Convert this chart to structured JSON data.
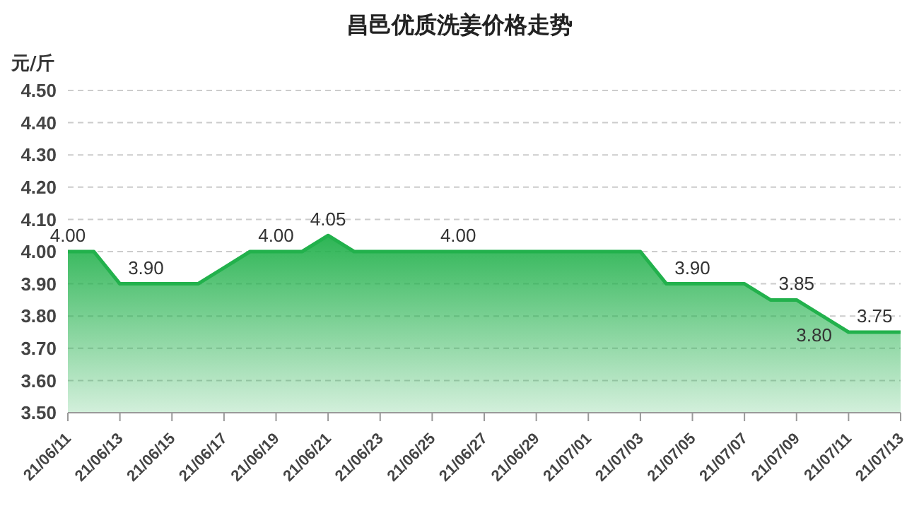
{
  "chart_data": {
    "type": "area",
    "title": "昌邑优质洗姜价格走势",
    "ylabel": "元/斤",
    "categories": [
      "21/06/11",
      null,
      "21/06/13",
      null,
      "21/06/15",
      null,
      "21/06/17",
      null,
      "21/06/19",
      null,
      "21/06/21",
      null,
      "21/06/23",
      null,
      "21/06/25",
      null,
      "21/06/27",
      null,
      "21/06/29",
      null,
      "21/07/01",
      null,
      "21/07/03",
      null,
      "21/07/05",
      null,
      "21/07/07",
      null,
      "21/07/09",
      null,
      "21/07/11",
      null,
      "21/07/13"
    ],
    "series": [
      {
        "color": "#22b14c",
        "values": [
          4.0,
          4.0,
          3.9,
          3.9,
          3.9,
          3.9,
          3.95,
          4.0,
          4.0,
          4.0,
          4.05,
          4.0,
          4.0,
          4.0,
          4.0,
          4.0,
          4.0,
          4.0,
          4.0,
          4.0,
          4.0,
          4.0,
          4.0,
          3.9,
          3.9,
          3.9,
          3.9,
          3.85,
          3.85,
          3.8,
          3.75,
          3.75,
          3.75
        ],
        "value_labels": [
          "4.00",
          null,
          null,
          "3.90",
          null,
          null,
          null,
          null,
          "4.00",
          null,
          "4.05",
          null,
          null,
          null,
          null,
          "4.00",
          null,
          null,
          null,
          null,
          null,
          null,
          null,
          null,
          "3.90",
          null,
          null,
          null,
          "3.85",
          "3.80",
          null,
          "3.75",
          null
        ]
      }
    ],
    "ylim": [
      3.5,
      4.5
    ],
    "yticks": [
      {
        "value": 3.5,
        "label": "3.50"
      },
      {
        "value": 3.6,
        "label": "3.60"
      },
      {
        "value": 3.7,
        "label": "3.70"
      },
      {
        "value": 3.8,
        "label": "3.80"
      },
      {
        "value": 3.9,
        "label": "3.90"
      },
      {
        "value": 4.0,
        "label": "4.00"
      },
      {
        "value": 4.1,
        "label": "4.10"
      },
      {
        "value": 4.2,
        "label": "4.20"
      },
      {
        "value": 4.3,
        "label": "4.30"
      },
      {
        "value": 4.4,
        "label": "4.40"
      },
      {
        "value": 4.5,
        "label": "4.50"
      }
    ],
    "grid": "y",
    "legend": false
  }
}
